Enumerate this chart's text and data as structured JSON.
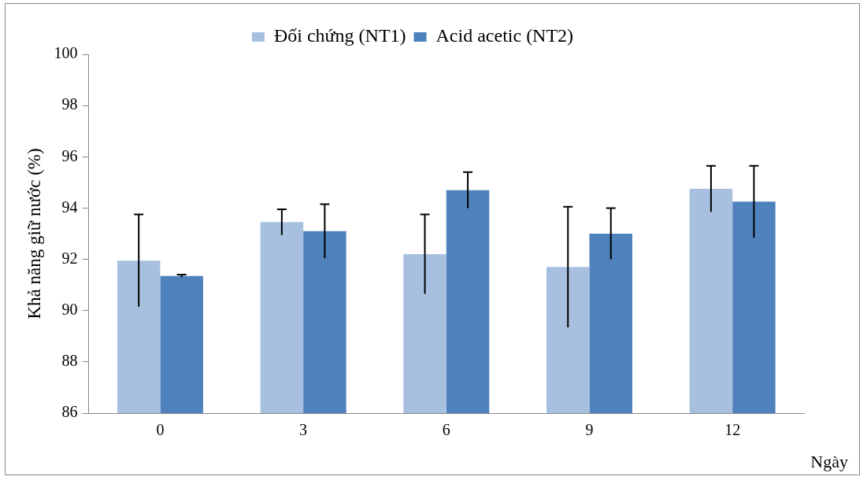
{
  "chart_data": {
    "type": "bar",
    "xlabel": "Ngày",
    "ylabel": "Khả năng giữ nước (%)",
    "categories": [
      "0",
      "3",
      "6",
      "9",
      "12"
    ],
    "series": [
      {
        "name": "Đối chứng (NT1)",
        "color": "#a7c0e0",
        "values": [
          91.95,
          93.45,
          92.2,
          91.7,
          94.75
        ],
        "errors": [
          1.8,
          0.5,
          1.55,
          2.35,
          0.9
        ]
      },
      {
        "name": "Acid acetic (NT2)",
        "color": "#4f81bd",
        "values": [
          91.35,
          93.1,
          94.7,
          93.0,
          94.25
        ],
        "errors": [
          0.05,
          1.05,
          0.7,
          1.0,
          1.4
        ]
      }
    ],
    "ylim": [
      86,
      100
    ],
    "yticks": [
      86,
      88,
      90,
      92,
      94,
      96,
      98,
      100
    ],
    "grid": false,
    "legend": "top"
  }
}
